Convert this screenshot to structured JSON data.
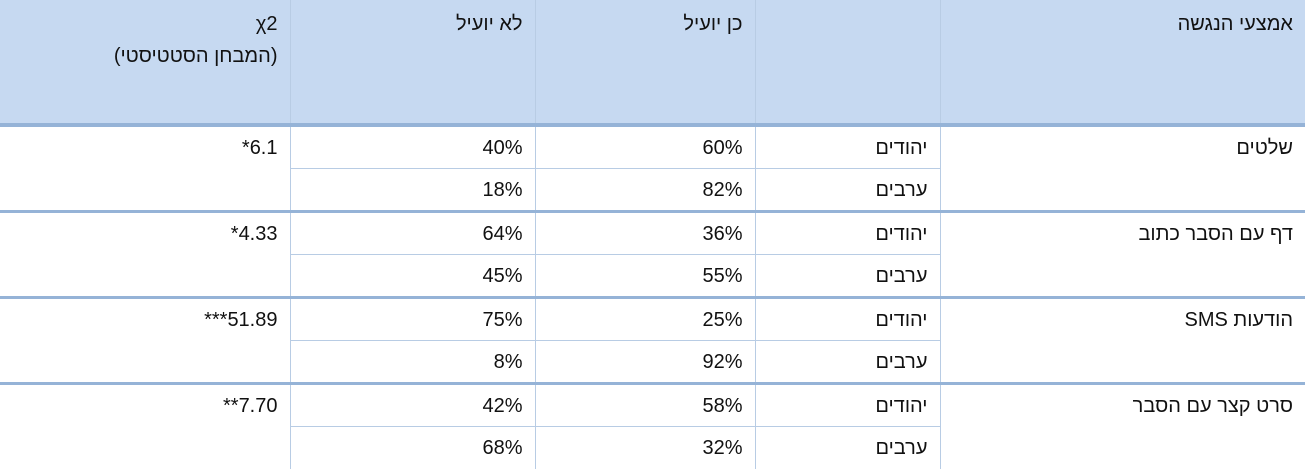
{
  "table": {
    "header": {
      "means": "אמצעי הנגשה",
      "yes": "כן יועיל",
      "no": "לא יועיל",
      "chi": [
        "χ2",
        "(המבחן הסטטיסטי)"
      ]
    },
    "rows": [
      {
        "means": "שלטים",
        "chi": "6.1*",
        "groups": [
          {
            "name": "יהודים",
            "yes": "60%",
            "no": "40%"
          },
          {
            "name": "ערבים",
            "yes": "82%",
            "no": "18%"
          }
        ]
      },
      {
        "means": "דף עם הסבר כתוב",
        "chi": "4.33*",
        "groups": [
          {
            "name": "יהודים",
            "yes": "36%",
            "no": "64%"
          },
          {
            "name": "ערבים",
            "yes": "55%",
            "no": "45%"
          }
        ]
      },
      {
        "means": "הודעות SMS",
        "chi": "51.89***",
        "groups": [
          {
            "name": "יהודים",
            "yes": "25%",
            "no": "75%"
          },
          {
            "name": "ערבים",
            "yes": "92%",
            "no": "8%"
          }
        ]
      },
      {
        "means": "סרט קצר עם הסבר",
        "chi": "7.70**",
        "groups": [
          {
            "name": "יהודים",
            "yes": "58%",
            "no": "42%"
          },
          {
            "name": "ערבים",
            "yes": "32%",
            "no": "68%"
          }
        ]
      }
    ]
  }
}
